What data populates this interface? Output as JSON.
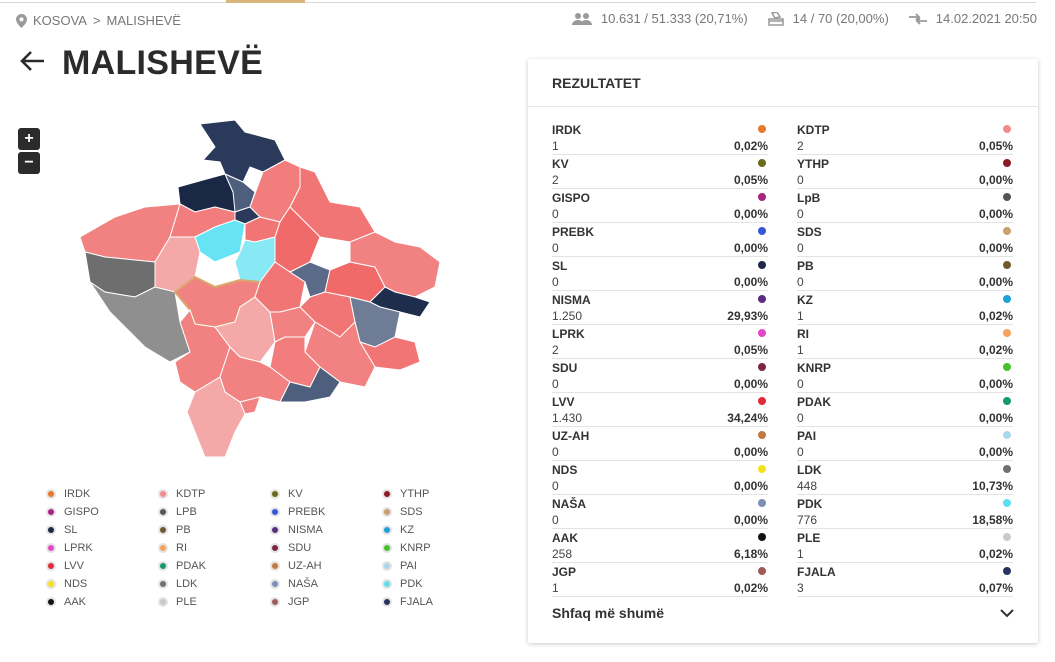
{
  "breadcrumb": {
    "country": "KOSOVA",
    "separator": ">",
    "municipality": "MALISHEVË"
  },
  "stats": {
    "voters": "10.631 / 51.333 (20,71%)",
    "stations": "14 / 70 (20,00%)",
    "updated": "14.02.2021 20:50"
  },
  "page": {
    "title": "MALISHEVË"
  },
  "map": {
    "zoom_in": "+",
    "zoom_out": "−"
  },
  "panel": {
    "title": "REZULTATET",
    "show_more": "Shfaq më shumë",
    "results": [
      {
        "name": "IRDK",
        "votes": "1",
        "pct": "0,02%",
        "color": "#e8782a"
      },
      {
        "name": "KDTP",
        "votes": "2",
        "pct": "0,05%",
        "color": "#f28b8b"
      },
      {
        "name": "KV",
        "votes": "2",
        "pct": "0,05%",
        "color": "#6b6b1e"
      },
      {
        "name": "YTHP",
        "votes": "0",
        "pct": "0,00%",
        "color": "#8b1a22"
      },
      {
        "name": "GISPO",
        "votes": "0",
        "pct": "0,00%",
        "color": "#a6247e"
      },
      {
        "name": "LpB",
        "votes": "0",
        "pct": "0,00%",
        "color": "#555555"
      },
      {
        "name": "PREBK",
        "votes": "0",
        "pct": "0,00%",
        "color": "#3558d8"
      },
      {
        "name": "SDS",
        "votes": "0",
        "pct": "0,00%",
        "color": "#c8a26a"
      },
      {
        "name": "SL",
        "votes": "0",
        "pct": "0,00%",
        "color": "#1f2747"
      },
      {
        "name": "PB",
        "votes": "0",
        "pct": "0,00%",
        "color": "#6e5a2e"
      },
      {
        "name": "NISMA",
        "votes": "1.250",
        "pct": "29,93%",
        "color": "#5a2c82"
      },
      {
        "name": "KZ",
        "votes": "1",
        "pct": "0,02%",
        "color": "#1ea0d8"
      },
      {
        "name": "LPRK",
        "votes": "2",
        "pct": "0,05%",
        "color": "#e548c6"
      },
      {
        "name": "RI",
        "votes": "1",
        "pct": "0,02%",
        "color": "#f5a35a"
      },
      {
        "name": "SDU",
        "votes": "0",
        "pct": "0,00%",
        "color": "#7d2546"
      },
      {
        "name": "KNRP",
        "votes": "0",
        "pct": "0,00%",
        "color": "#45c22a"
      },
      {
        "name": "LVV",
        "votes": "1.430",
        "pct": "34,24%",
        "color": "#e32a36"
      },
      {
        "name": "PDAK",
        "votes": "0",
        "pct": "0,00%",
        "color": "#159a68"
      },
      {
        "name": "UZ-AH",
        "votes": "0",
        "pct": "0,00%",
        "color": "#c27a45"
      },
      {
        "name": "PAI",
        "votes": "0",
        "pct": "0,00%",
        "color": "#a9d8ee"
      },
      {
        "name": "NDS",
        "votes": "0",
        "pct": "0,00%",
        "color": "#f5e21e"
      },
      {
        "name": "LDK",
        "votes": "448",
        "pct": "10,73%",
        "color": "#707070"
      },
      {
        "name": "NAŠA",
        "votes": "0",
        "pct": "0,00%",
        "color": "#7d8fb5"
      },
      {
        "name": "PDK",
        "votes": "776",
        "pct": "18,58%",
        "color": "#5ee0f2"
      },
      {
        "name": "AAK",
        "votes": "258",
        "pct": "6,18%",
        "color": "#111111"
      },
      {
        "name": "PLE",
        "votes": "1",
        "pct": "0,02%",
        "color": "#c9c9c9"
      },
      {
        "name": "JGP",
        "votes": "1",
        "pct": "0,02%",
        "color": "#a05a5a"
      },
      {
        "name": "FJALA",
        "votes": "3",
        "pct": "0,07%",
        "color": "#26345e"
      }
    ]
  },
  "legend": [
    {
      "name": "IRDK",
      "color": "#e8782a"
    },
    {
      "name": "KDTP",
      "color": "#f28b8b"
    },
    {
      "name": "KV",
      "color": "#6b6b1e"
    },
    {
      "name": "YTHP",
      "color": "#8b1a22"
    },
    {
      "name": "GISPO",
      "color": "#a6247e"
    },
    {
      "name": "LPB",
      "color": "#555555"
    },
    {
      "name": "PREBK",
      "color": "#3558d8"
    },
    {
      "name": "SDS",
      "color": "#c8a26a"
    },
    {
      "name": "SL",
      "color": "#1f2747"
    },
    {
      "name": "PB",
      "color": "#6e5a2e"
    },
    {
      "name": "NISMA",
      "color": "#5a2c82"
    },
    {
      "name": "KZ",
      "color": "#1ea0d8"
    },
    {
      "name": "LPRK",
      "color": "#e548c6"
    },
    {
      "name": "RI",
      "color": "#f5a35a"
    },
    {
      "name": "SDU",
      "color": "#7d2546"
    },
    {
      "name": "KNRP",
      "color": "#45c22a"
    },
    {
      "name": "LVV",
      "color": "#e32a36"
    },
    {
      "name": "PDAK",
      "color": "#159a68"
    },
    {
      "name": "UZ-AH",
      "color": "#c27a45"
    },
    {
      "name": "PAI",
      "color": "#a9d8ee"
    },
    {
      "name": "NDS",
      "color": "#f5e21e"
    },
    {
      "name": "LDK",
      "color": "#707070"
    },
    {
      "name": "NAŠA",
      "color": "#7d8fb5"
    },
    {
      "name": "PDK",
      "color": "#5ee0f2"
    },
    {
      "name": "AAK",
      "color": "#111111"
    },
    {
      "name": "PLE",
      "color": "#c9c9c9"
    },
    {
      "name": "JGP",
      "color": "#a05a5a"
    },
    {
      "name": "FJALA",
      "color": "#26345e"
    }
  ]
}
